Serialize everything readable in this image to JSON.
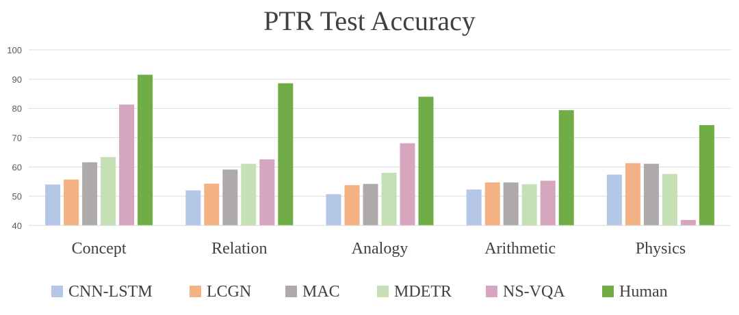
{
  "chart_data": {
    "type": "bar",
    "title": "PTR Test Accuracy",
    "xlabel": "",
    "ylabel": "",
    "ylim": [
      40,
      100
    ],
    "yticks": [
      40,
      50,
      60,
      70,
      80,
      90,
      100
    ],
    "grid": true,
    "legend_position": "bottom",
    "categories": [
      "Concept",
      "Relation",
      "Analogy",
      "Arithmetic",
      "Physics"
    ],
    "series": [
      {
        "name": "CNN-LSTM",
        "color": "#b4c7e7",
        "values": [
          54.0,
          52.0,
          50.7,
          52.3,
          57.4
        ]
      },
      {
        "name": "LCGN",
        "color": "#f4b183",
        "values": [
          55.7,
          54.3,
          53.8,
          54.7,
          61.3
        ]
      },
      {
        "name": "MAC",
        "color": "#aeaaaa",
        "values": [
          61.6,
          59.1,
          54.2,
          54.7,
          61.1
        ]
      },
      {
        "name": "MDETR",
        "color": "#c5e0b4",
        "values": [
          63.4,
          61.1,
          58.0,
          54.1,
          57.6
        ]
      },
      {
        "name": "NS-VQA",
        "color": "#d5a6bd",
        "values": [
          81.3,
          62.6,
          68.1,
          55.3,
          41.9
        ]
      },
      {
        "name": "Human",
        "color": "#70ad47",
        "values": [
          91.5,
          88.6,
          84.0,
          79.4,
          74.3
        ]
      }
    ]
  }
}
